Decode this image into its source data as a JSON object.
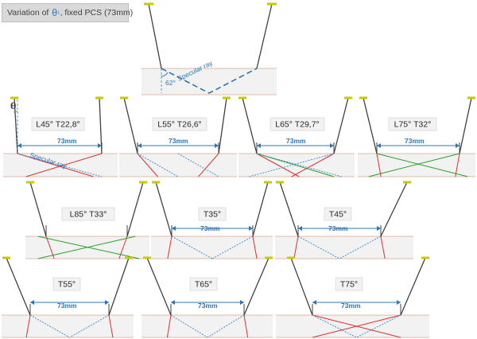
{
  "title": {
    "prefix": "Variation of",
    "symbol": "θ",
    "subscript": "i",
    "suffix": ", fixed PCS (73mm)"
  },
  "colors": {
    "probe_line": "#404040",
    "probe_head": "#c9c900",
    "plate_fill": "#f2f2f2",
    "plate_border": "#e3b9a6",
    "longitudinal_ray": "#e03030",
    "transverse_ray": "#4a8fd0",
    "green_ray": "#2aa02a",
    "dimension": "#2e75b6"
  },
  "top_example": {
    "annotation": "Specular ray",
    "angle": "62°"
  },
  "first_panel_extras": {
    "theta_label": "θ",
    "ray_annotation": "Specular ray"
  },
  "panels": [
    {
      "label": "L45°   T22,8°",
      "dimension": "73mm"
    },
    {
      "label": "L55°   T26,6°",
      "dimension": "73mm"
    },
    {
      "label": "L65°   T29,7°",
      "dimension": "73mm"
    },
    {
      "label": "L75°   T32°",
      "dimension": "73mm"
    },
    {
      "label": "L85°   T33°",
      "dimension": ""
    },
    {
      "label": "T35°",
      "dimension": "73mm"
    },
    {
      "label": "T45°",
      "dimension": "73mm"
    },
    {
      "label": "T55°",
      "dimension": "73mm"
    },
    {
      "label": "T65°",
      "dimension": "73mm"
    },
    {
      "label": "T75°",
      "dimension": "73mm"
    }
  ]
}
